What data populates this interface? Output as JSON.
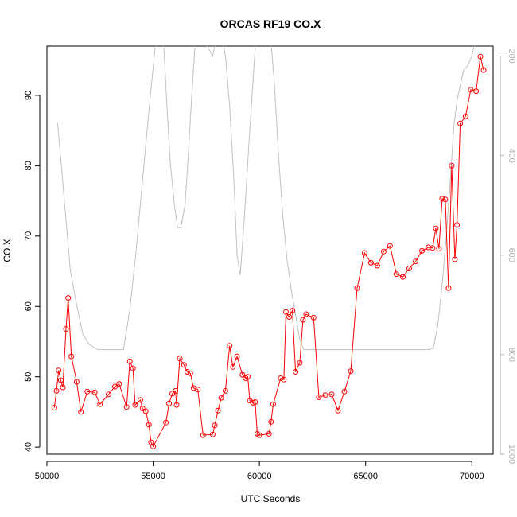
{
  "chart_data": {
    "type": "line",
    "title": "ORCAS RF19 CO.X",
    "xlabel": "UTC Seconds",
    "ylabel": "CO.X",
    "xlim": [
      50000,
      71000
    ],
    "ylim": [
      39,
      97
    ],
    "y2lim": [
      1000,
      180
    ],
    "x_ticks": [
      50000,
      55000,
      60000,
      65000,
      70000
    ],
    "y_ticks": [
      40,
      50,
      60,
      70,
      80,
      90
    ],
    "y2_ticks": [
      200,
      400,
      600,
      800,
      1000
    ],
    "colors": {
      "co": "#ff0000",
      "pressure": "#c0c0c0",
      "axis": "#000000",
      "axis2": "#b0b0b0"
    },
    "series": [
      {
        "role": "co",
        "x": [
          50350,
          50450,
          50550,
          50650,
          50750,
          50900,
          51000,
          51150,
          51400,
          51600,
          51900,
          52250,
          52500,
          52900,
          53200,
          53400,
          53750,
          53900,
          54050,
          54150,
          54400,
          54500,
          54650,
          54800,
          54900,
          55000,
          55600,
          55750,
          55900,
          56050,
          56100,
          56250,
          56450,
          56600,
          56750,
          56900,
          57100,
          57350,
          57800,
          57900,
          58050,
          58200,
          58400,
          58600,
          58750,
          58950,
          59200,
          59350,
          59450,
          59550,
          59700,
          59800,
          59900,
          60000,
          60450,
          60550,
          60650,
          61000,
          61150,
          61250,
          61400,
          61550,
          61700,
          61900,
          62050,
          62200,
          62550,
          62800,
          63100,
          63400,
          63700,
          64000,
          64300,
          64600,
          64950,
          65250,
          65550,
          65850,
          66150,
          66450,
          66750,
          67050,
          67350,
          67650,
          67950,
          68150,
          68300,
          68450,
          68600,
          68750,
          68900,
          69050,
          69200,
          69300,
          69450,
          69700,
          69950,
          70200,
          70400,
          70550
        ],
        "y": [
          45.6,
          48.0,
          50.9,
          49.5,
          48.5,
          56.8,
          61.2,
          52.9,
          49.3,
          45.0,
          47.9,
          47.8,
          46.1,
          47.5,
          48.6,
          49.0,
          45.7,
          52.2,
          51.2,
          46.0,
          46.7,
          45.5,
          45.1,
          43.2,
          40.7,
          40.1,
          43.5,
          46.2,
          47.6,
          48.0,
          46.0,
          52.6,
          51.7,
          50.7,
          50.5,
          48.4,
          48.2,
          41.7,
          41.8,
          43.1,
          45.2,
          47.0,
          48.0,
          54.4,
          51.4,
          52.9,
          50.3,
          49.8,
          50.0,
          46.6,
          46.3,
          46.4,
          41.9,
          41.7,
          41.9,
          43.6,
          46.1,
          49.8,
          49.6,
          59.2,
          58.5,
          59.4,
          50.7,
          52.0,
          58.1,
          58.9,
          58.4,
          47.1,
          47.4,
          47.5,
          45.2,
          47.9,
          50.8,
          62.6,
          67.6,
          66.2,
          65.8,
          67.8,
          68.6,
          64.6,
          64.2,
          65.4,
          66.4,
          67.9,
          68.4,
          68.3,
          71.1,
          68.2,
          75.3,
          75.2,
          62.6,
          80.0,
          66.7,
          71.6,
          86.0,
          87.0,
          90.8,
          90.6,
          95.5,
          93.6
        ]
      },
      {
        "role": "pressure",
        "x": [
          50500,
          50700,
          50900,
          51100,
          51400,
          51700,
          52000,
          52400,
          53000,
          53600,
          53900,
          54200,
          54500,
          54800,
          55100,
          55300,
          55500,
          55650,
          55800,
          56000,
          56150,
          56300,
          56500,
          56650,
          56800,
          56950,
          57100,
          57250,
          57400,
          57550,
          57800,
          58000,
          58200,
          58400,
          58600,
          58800,
          58950,
          59100,
          59300,
          59500,
          59700,
          59900,
          60100,
          60300,
          60500,
          60700,
          60900,
          61100,
          61300,
          61500,
          61700,
          61900,
          62100,
          62400,
          63000,
          64000,
          65000,
          66000,
          67000,
          68000,
          68200,
          68400,
          68600,
          68800,
          69000,
          69150,
          69300,
          69450,
          69600,
          69800,
          70000,
          70200,
          70400
        ],
        "y": [
          335,
          430,
          530,
          630,
          700,
          760,
          780,
          790,
          790,
          790,
          710,
          590,
          450,
          310,
          180,
          80,
          180,
          300,
          410,
          500,
          545,
          545,
          500,
          400,
          290,
          190,
          110,
          50,
          100,
          180,
          200,
          160,
          150,
          200,
          300,
          450,
          600,
          640,
          520,
          380,
          250,
          120,
          80,
          60,
          150,
          250,
          400,
          520,
          610,
          670,
          720,
          770,
          790,
          790,
          790,
          790,
          790,
          790,
          790,
          790,
          785,
          740,
          660,
          560,
          440,
          340,
          290,
          260,
          230,
          220,
          200,
          160,
          150
        ]
      }
    ]
  }
}
